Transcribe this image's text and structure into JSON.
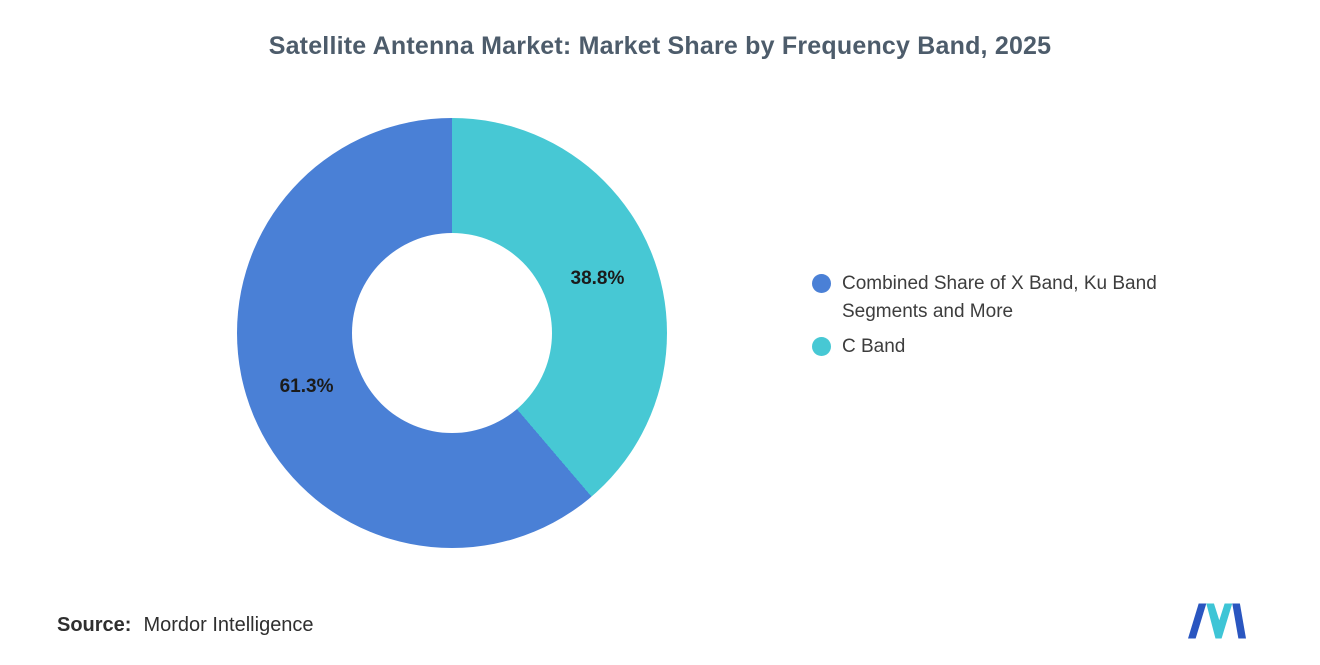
{
  "title": "Satellite Antenna Market: Market Share by Frequency Band, 2025",
  "colors": {
    "title": "#4D5C6B",
    "blue": "#4A80D6",
    "teal": "#47C8D4"
  },
  "chart_data": {
    "type": "pie",
    "subtype": "donut",
    "title": "Satellite Antenna Market: Market Share by Frequency Band, 2025",
    "legend_position": "right",
    "start_angle_deg": 0,
    "direction": "clockwise, C Band slice first from 12 o'clock",
    "slices": [
      {
        "label": "Combined Share of X Band, Ku Band Segments and More",
        "value": 61.3,
        "display": "61.3%",
        "color": "#4A80D6"
      },
      {
        "label": "C Band",
        "value": 38.8,
        "display": "38.8%",
        "color": "#47C8D4"
      }
    ]
  },
  "source": {
    "label": "Source:",
    "value": "Mordor Intelligence"
  },
  "branding": {
    "logo": "mordor-intelligence-logo"
  }
}
